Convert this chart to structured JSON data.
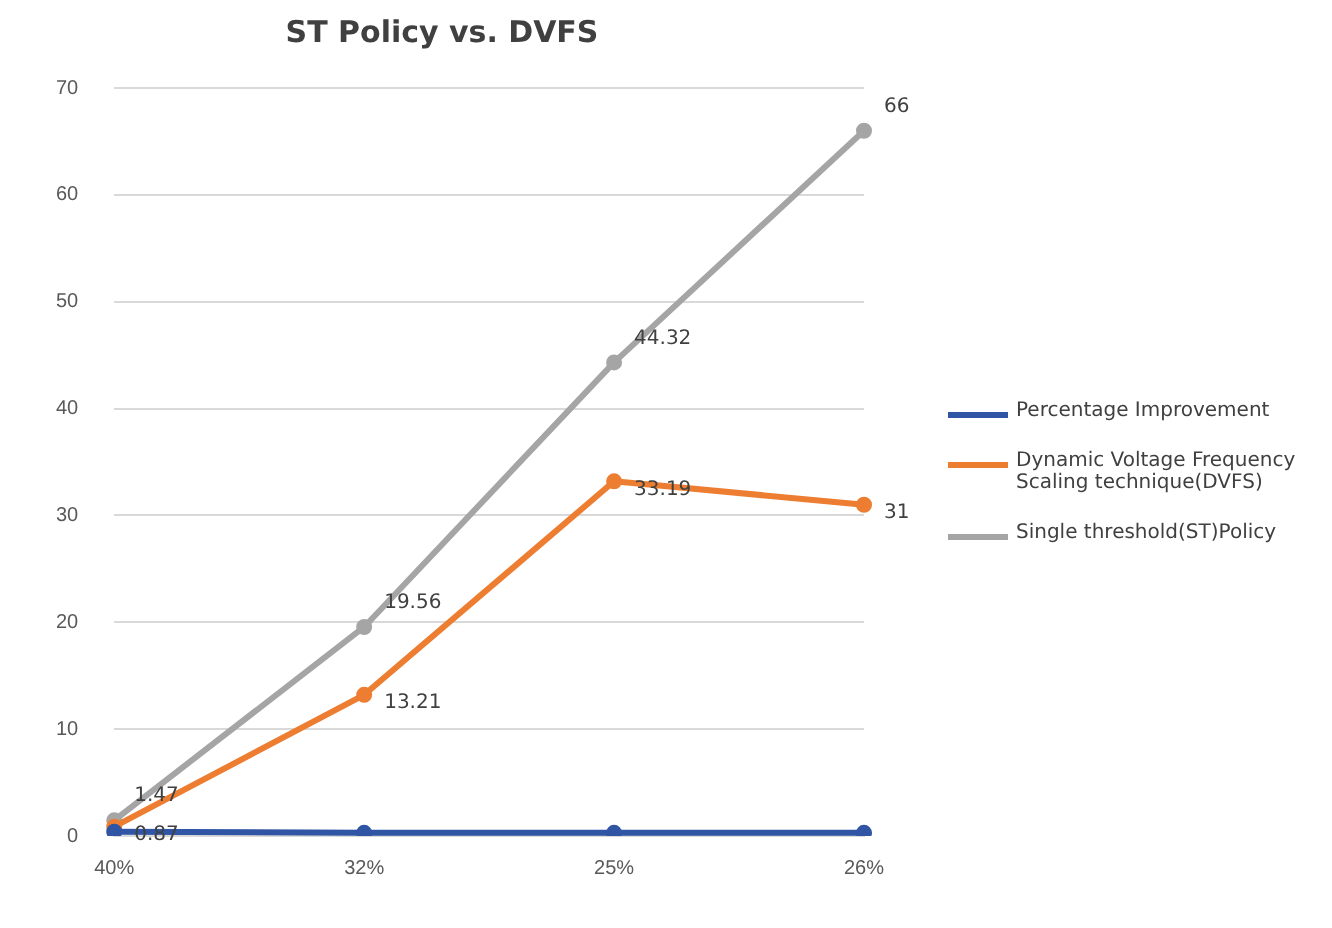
{
  "chart_data": {
    "type": "line",
    "title": "ST Policy vs. DVFS",
    "categories": [
      "40%",
      "32%",
      "25%",
      "26%"
    ],
    "series": [
      {
        "name": "Percentage Improvement",
        "color": "#2f55a4",
        "values": [
          0.4,
          0.3,
          0.3,
          0.3
        ]
      },
      {
        "name": "Dynamic Voltage Frequency Scaling technique(DVFS)",
        "color": "#ed7d31",
        "values": [
          0.87,
          13.21,
          33.19,
          31
        ],
        "value_labels": [
          "0.87",
          "13.21",
          "33.19",
          "31"
        ]
      },
      {
        "name": "Single threshold(ST)Policy",
        "color": "#a5a5a5",
        "values": [
          1.47,
          19.56,
          44.32,
          66
        ],
        "value_labels": [
          "1.47",
          "19.56",
          "44.32",
          "66"
        ]
      }
    ],
    "ylim": [
      0,
      70
    ],
    "yticks": [
      0,
      10,
      20,
      30,
      40,
      50,
      60,
      70
    ],
    "grid": "y",
    "legend": "right",
    "marker": "circle"
  }
}
